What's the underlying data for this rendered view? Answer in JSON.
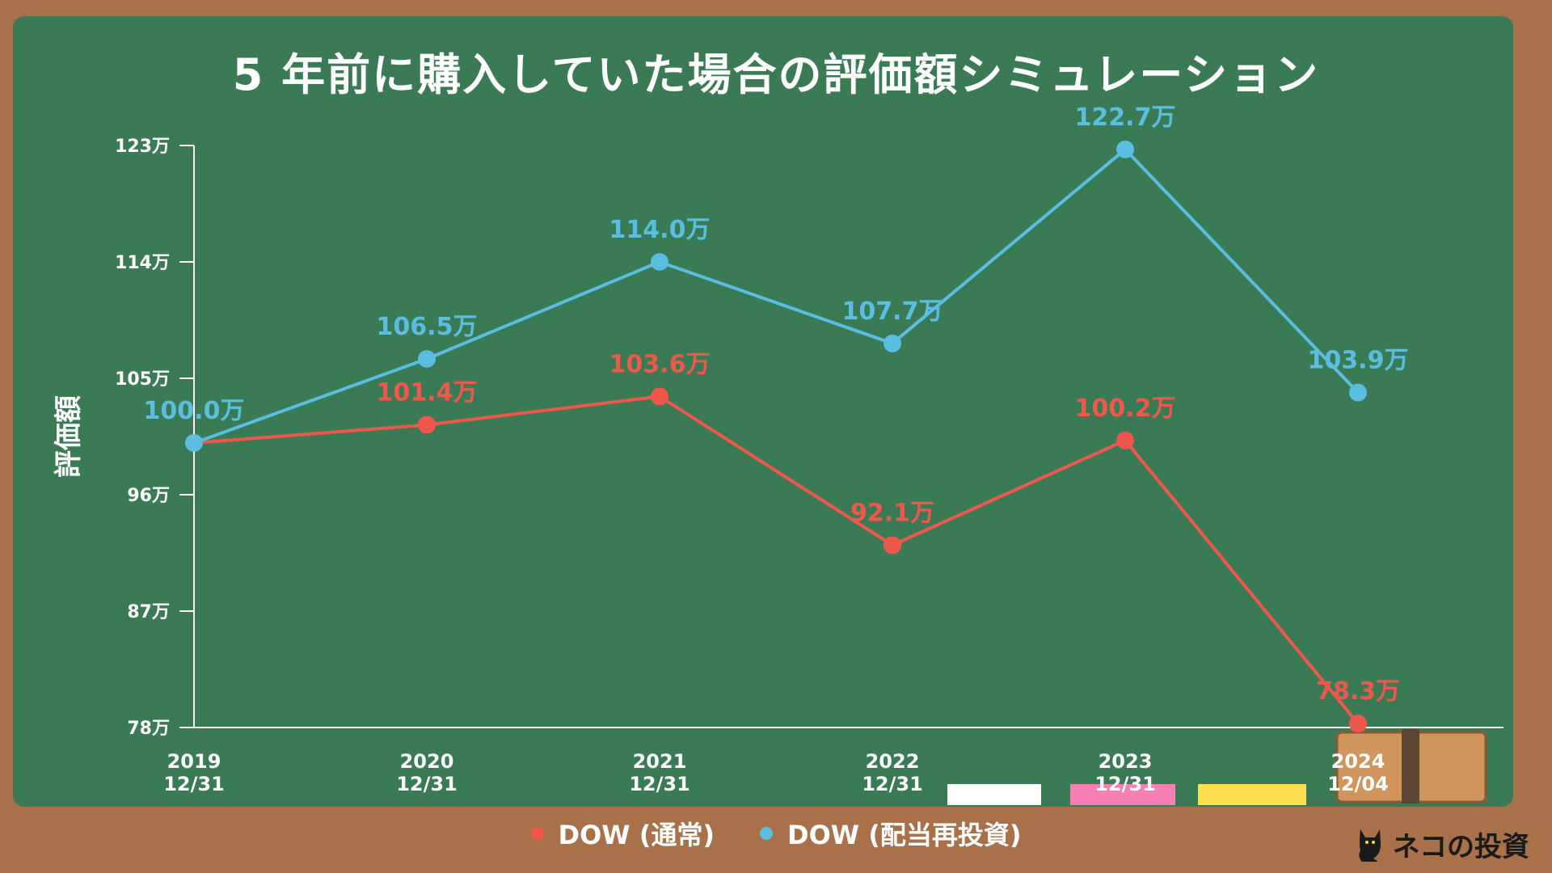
{
  "title": "5 年前に購入していた場合の評価額シミュレーション",
  "colors": {
    "normal": "#f0574b",
    "reinvest": "#5bbde0",
    "board": "#3a7b56",
    "frame": "#a87149"
  },
  "logo": {
    "text": "ネコの投資",
    "icon": "cat-icon"
  },
  "chart_data": {
    "type": "line",
    "title": "5 年前に購入していた場合の評価額シミュレーション",
    "ylabel": "評価額",
    "xlabel": "",
    "categories": [
      "2019\n12/31",
      "2020\n12/31",
      "2021\n12/31",
      "2022\n12/31",
      "2023\n12/31",
      "2024\n12/04"
    ],
    "yticks": [
      "78万",
      "87万",
      "96万",
      "105万",
      "114万",
      "123万"
    ],
    "ytick_values": [
      78,
      87,
      96,
      105,
      114,
      123
    ],
    "ylim": [
      78,
      123
    ],
    "grid": false,
    "legend": "bottom",
    "series": [
      {
        "name": "DOW (通常)",
        "values": [
          100.0,
          101.4,
          103.6,
          92.1,
          100.2,
          78.3
        ],
        "labels": [
          "",
          "101.4万",
          "103.6万",
          "92.1万",
          "100.2万",
          "78.3万"
        ],
        "color": "#f0574b"
      },
      {
        "name": "DOW (配当再投資)",
        "values": [
          100.0,
          106.5,
          114.0,
          107.7,
          122.7,
          103.9
        ],
        "labels": [
          "100.0万",
          "106.5万",
          "114.0万",
          "107.7万",
          "122.7万",
          "103.9万"
        ],
        "color": "#5bbde0"
      }
    ]
  }
}
